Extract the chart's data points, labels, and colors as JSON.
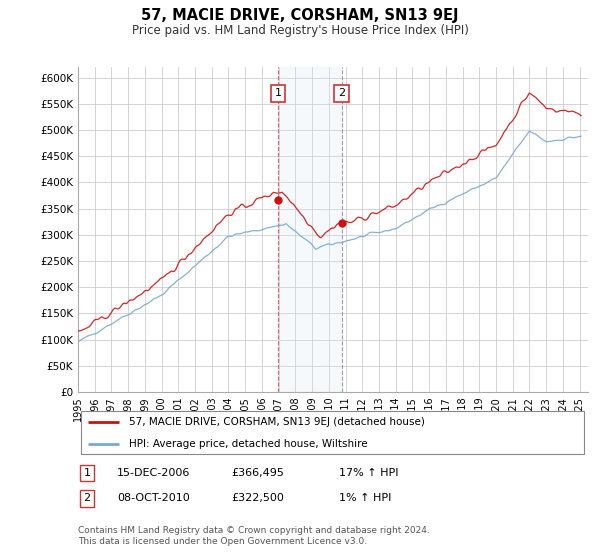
{
  "title": "57, MACIE DRIVE, CORSHAM, SN13 9EJ",
  "subtitle": "Price paid vs. HM Land Registry's House Price Index (HPI)",
  "ylim": [
    0,
    620000
  ],
  "yticks": [
    0,
    50000,
    100000,
    150000,
    200000,
    250000,
    300000,
    350000,
    400000,
    450000,
    500000,
    550000,
    600000
  ],
  "ytick_labels": [
    "£0",
    "£50K",
    "£100K",
    "£150K",
    "£200K",
    "£250K",
    "£300K",
    "£350K",
    "£400K",
    "£450K",
    "£500K",
    "£550K",
    "£600K"
  ],
  "hpi_color": "#7aa8d2",
  "price_color": "#cc1111",
  "transaction1_date": 2006.96,
  "transaction1_price": 366495,
  "transaction1_label": "1",
  "transaction2_date": 2010.78,
  "transaction2_price": 322500,
  "transaction2_label": "2",
  "legend_price_label": "57, MACIE DRIVE, CORSHAM, SN13 9EJ (detached house)",
  "legend_hpi_label": "HPI: Average price, detached house, Wiltshire",
  "annotation1_date": "15-DEC-2006",
  "annotation1_price": "£366,495",
  "annotation1_hpi": "17% ↑ HPI",
  "annotation2_date": "08-OCT-2010",
  "annotation2_price": "£322,500",
  "annotation2_hpi": "1% ↑ HPI",
  "footer": "Contains HM Land Registry data © Crown copyright and database right 2024.\nThis data is licensed under the Open Government Licence v3.0.",
  "background_color": "#ffffff",
  "grid_color": "#cccccc",
  "shade_color": "#d8e8f4"
}
